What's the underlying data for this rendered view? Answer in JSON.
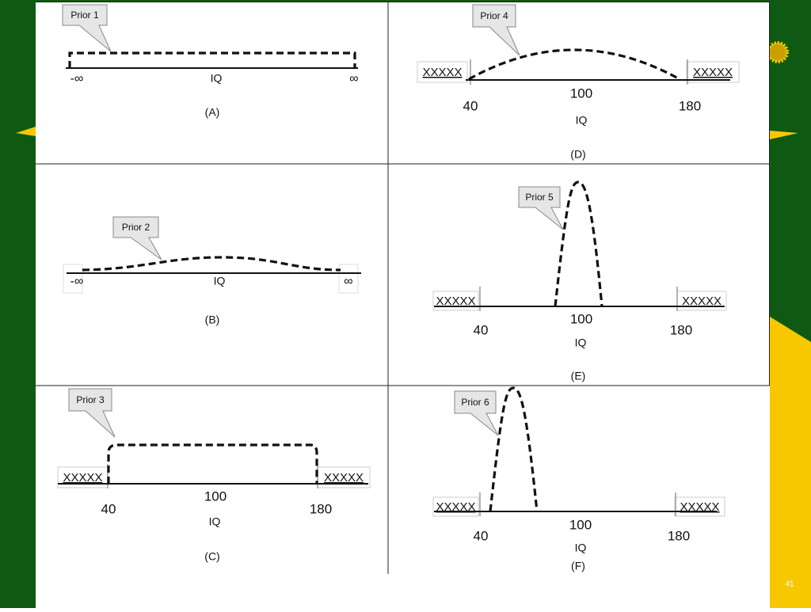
{
  "slide_number": "41",
  "panels": [
    {
      "callout": "Prior 1",
      "caption": "(A)",
      "axis_label": "IQ",
      "left_label": "-∞",
      "right_label": "∞"
    },
    {
      "callout": "Prior 4",
      "caption": "(D)",
      "axis_label": "IQ",
      "left_box": "XXXXX",
      "right_box": "XXXXX",
      "ticks": [
        "40",
        "100",
        "180"
      ]
    },
    {
      "callout": "Prior 2",
      "caption": "(B)",
      "axis_label": "IQ",
      "left_label": "-∞",
      "right_label": "∞"
    },
    {
      "callout": "Prior 5",
      "caption": "(E)",
      "axis_label": "IQ",
      "left_box": "XXXXX",
      "right_box": "XXXXX",
      "ticks": [
        "40",
        "100",
        "180"
      ]
    },
    {
      "callout": "Prior 3",
      "caption": "(C)",
      "axis_label": "IQ",
      "left_box": "XXXXX",
      "right_box": "XXXXX",
      "ticks": [
        "40",
        "100",
        "180"
      ]
    },
    {
      "callout": "Prior 6",
      "caption": "(F)",
      "axis_label": "IQ",
      "left_box": "XXXXX",
      "right_box": "XXXXX",
      "ticks": [
        "40",
        "100",
        "180"
      ]
    }
  ]
}
